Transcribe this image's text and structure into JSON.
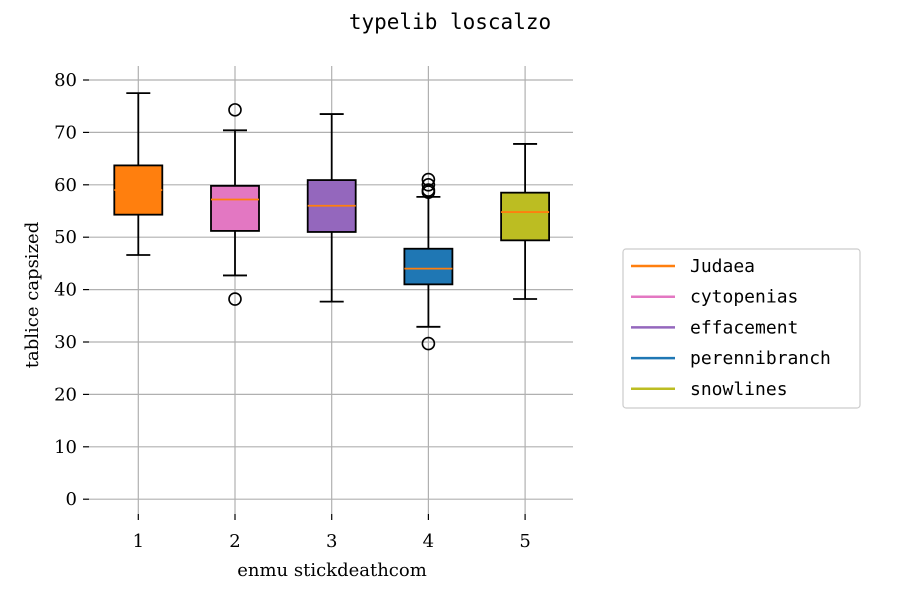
{
  "chart_data": {
    "type": "box",
    "title": "typelib loscalzo",
    "xlabel": "enmu stickdeathcom",
    "ylabel": "tablice capsized",
    "ylim": [
      -3,
      82
    ],
    "yticks": [
      0,
      10,
      20,
      30,
      40,
      50,
      60,
      70,
      80
    ],
    "categories": [
      "1",
      "2",
      "3",
      "4",
      "5"
    ],
    "grid": true,
    "legend_position": "right",
    "median_color": "#ff7f0e",
    "series": [
      {
        "name": "Judaea",
        "color": "#ff7f0e",
        "whisker_low": 46.6,
        "q1": 54.3,
        "median": 59.0,
        "q3": 63.7,
        "whisker_high": 77.5,
        "outliers": []
      },
      {
        "name": "cytopenias",
        "color": "#e377c2",
        "whisker_low": 42.7,
        "q1": 51.2,
        "median": 57.2,
        "q3": 59.8,
        "whisker_high": 70.4,
        "outliers": [
          74.3,
          38.2
        ]
      },
      {
        "name": "effacement",
        "color": "#9467bd",
        "whisker_low": 37.7,
        "q1": 51.0,
        "median": 56.0,
        "q3": 60.9,
        "whisker_high": 73.5,
        "outliers": []
      },
      {
        "name": "perennibranch",
        "color": "#1f77b4",
        "whisker_low": 32.9,
        "q1": 41.0,
        "median": 44.0,
        "q3": 47.8,
        "whisker_high": 57.7,
        "outliers": [
          61.0,
          60.0,
          59.0,
          58.6,
          29.7
        ]
      },
      {
        "name": "snowlines",
        "color": "#bcbd22",
        "whisker_low": 38.2,
        "q1": 49.4,
        "median": 54.8,
        "q3": 58.5,
        "whisker_high": 67.8,
        "outliers": []
      }
    ]
  }
}
